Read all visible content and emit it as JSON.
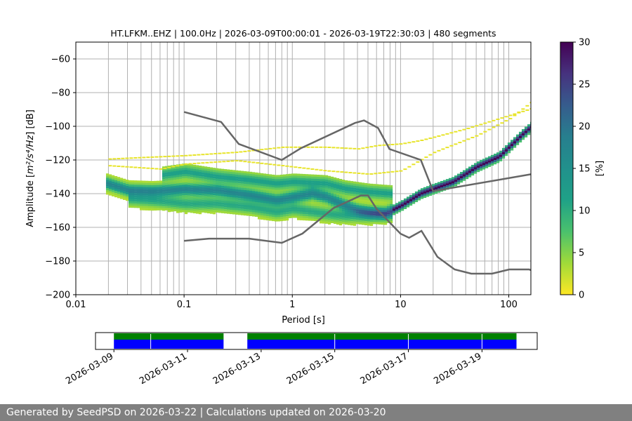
{
  "chart_data": [
    {
      "type": "heatmap",
      "subtype": "probabilistic-power-spectral-density",
      "title": "HT.LFKM..EHZ | 100.0Hz | 2026-03-09T00:00:01 - 2026-03-19T22:30:03 | 480 segments",
      "xlabel": "Period [s]",
      "ylabel_main": "Amplitude [",
      "ylabel_unit": "m²/s⁴/Hz",
      "ylabel_end": "] [dB]",
      "xscale": "log",
      "xlim": [
        0.01,
        160
      ],
      "ylim": [
        -200,
        -50
      ],
      "xticks": [
        {
          "value": 0.01,
          "label": "0.01"
        },
        {
          "value": 0.1,
          "label": "0.1"
        },
        {
          "value": 1,
          "label": "1"
        },
        {
          "value": 10,
          "label": "10"
        },
        {
          "value": 100,
          "label": "100"
        }
      ],
      "yticks": [
        {
          "value": -60,
          "label": "−60"
        },
        {
          "value": -80,
          "label": "−80"
        },
        {
          "value": -100,
          "label": "−100"
        },
        {
          "value": -120,
          "label": "−120"
        },
        {
          "value": -140,
          "label": "−140"
        },
        {
          "value": -160,
          "label": "−160"
        },
        {
          "value": -180,
          "label": "−180"
        },
        {
          "value": -200,
          "label": "−200"
        }
      ],
      "grid_periods": [
        0.02,
        0.03,
        0.04,
        0.05,
        0.06,
        0.07,
        0.08,
        0.09,
        0.1,
        0.2,
        0.3,
        0.4,
        0.5,
        0.6,
        0.7,
        0.8,
        0.9,
        1,
        2,
        3,
        4,
        5,
        6,
        7,
        8,
        9,
        10,
        20,
        30,
        40,
        50,
        60,
        70,
        80,
        90,
        100
      ],
      "grid": true,
      "noise_models": [
        {
          "name": "NHNM",
          "color": "#666666",
          "points": [
            [
              0.1,
              -91.5
            ],
            [
              0.22,
              -97.4
            ],
            [
              0.32,
              -110.5
            ],
            [
              0.8,
              -120
            ],
            [
              1.2,
              -113
            ],
            [
              3.8,
              -98
            ],
            [
              4.6,
              -96.5
            ],
            [
              6.2,
              -101
            ],
            [
              7.9,
              -113.5
            ],
            [
              15.4,
              -120
            ],
            [
              20,
              -138.5
            ],
            [
              160,
              -128.5
            ]
          ]
        },
        {
          "name": "NLNM",
          "color": "#666666",
          "points": [
            [
              0.1,
              -168
            ],
            [
              0.17,
              -166.7
            ],
            [
              0.4,
              -166.7
            ],
            [
              0.8,
              -169.2
            ],
            [
              1.24,
              -163.7
            ],
            [
              2.4,
              -148.6
            ],
            [
              4.3,
              -141.1
            ],
            [
              5.0,
              -141.1
            ],
            [
              6.0,
              -149.0
            ],
            [
              10,
              -163.8
            ],
            [
              12,
              -166.2
            ],
            [
              15.6,
              -162.1
            ],
            [
              21.9,
              -177.5
            ],
            [
              31.6,
              -185
            ],
            [
              45,
              -187.5
            ],
            [
              70,
              -187.5
            ],
            [
              101,
              -185
            ],
            [
              154,
              -185
            ],
            [
              160,
              -185.4
            ]
          ]
        }
      ],
      "ridges": [
        {
          "name": "mode",
          "points": [
            [
              0.019,
              -134
            ],
            [
              0.03,
              -138
            ],
            [
              0.05,
              -138.5
            ],
            [
              0.1,
              -137.5
            ],
            [
              0.2,
              -138
            ],
            [
              0.4,
              -141
            ],
            [
              0.7,
              -144
            ],
            [
              1.0,
              -142
            ],
            [
              1.5,
              -140
            ],
            [
              2.0,
              -142
            ],
            [
              3.0,
              -147
            ],
            [
              4.0,
              -150
            ],
            [
              5.0,
              -151
            ],
            [
              7.0,
              -152
            ],
            [
              10,
              -147
            ],
            [
              15,
              -140
            ],
            [
              20,
              -137
            ],
            [
              30,
              -133
            ],
            [
              50,
              -124
            ],
            [
              80,
              -118
            ],
            [
              100,
              -112
            ],
            [
              130,
              -105
            ],
            [
              160,
              -100
            ]
          ]
        },
        {
          "name": "upper",
          "points": [
            [
              0.06,
              -129
            ],
            [
              0.1,
              -127
            ],
            [
              0.2,
              -130
            ],
            [
              0.4,
              -132
            ],
            [
              0.7,
              -134
            ],
            [
              1.0,
              -133
            ],
            [
              2,
              -134
            ],
            [
              3,
              -137
            ],
            [
              5,
              -139
            ],
            [
              8,
              -140
            ]
          ]
        },
        {
          "name": "lower",
          "points": [
            [
              0.03,
              -143
            ],
            [
              0.05,
              -144
            ],
            [
              0.1,
              -146
            ],
            [
              0.2,
              -146
            ],
            [
              0.4,
              -148
            ],
            [
              0.7,
              -151
            ],
            [
              1.0,
              -149
            ],
            [
              2,
              -152
            ],
            [
              3,
              -153
            ],
            [
              5,
              -153
            ],
            [
              8,
              -152
            ]
          ]
        }
      ],
      "spurs": [
        {
          "name": "upper-spur-1",
          "points": [
            [
              0.02,
              -119
            ],
            [
              0.1,
              -117
            ],
            [
              0.3,
              -115
            ],
            [
              0.8,
              -112
            ],
            [
              2,
              -112
            ],
            [
              4,
              -113
            ],
            [
              6,
              -111
            ],
            [
              10,
              -110
            ],
            [
              15,
              -108
            ],
            [
              20,
              -106
            ],
            [
              40,
              -101
            ],
            [
              80,
              -95
            ],
            [
              160,
              -89
            ]
          ]
        },
        {
          "name": "upper-spur-2",
          "points": [
            [
              0.02,
              -123
            ],
            [
              0.06,
              -125
            ],
            [
              0.1,
              -122
            ],
            [
              0.3,
              -120
            ],
            [
              0.8,
              -123
            ],
            [
              2,
              -126
            ],
            [
              5,
              -128
            ],
            [
              10,
              -126
            ],
            [
              20,
              -115
            ],
            [
              50,
              -105
            ],
            [
              100,
              -95
            ],
            [
              160,
              -85
            ]
          ]
        }
      ],
      "colorbar": {
        "label": "[%]",
        "min": 0,
        "max": 30,
        "cmap": "viridis_r",
        "ticks": [
          {
            "value": 0,
            "label": "0"
          },
          {
            "value": 5,
            "label": "5"
          },
          {
            "value": 10,
            "label": "10"
          },
          {
            "value": 15,
            "label": "15"
          },
          {
            "value": 20,
            "label": "20"
          },
          {
            "value": 25,
            "label": "25"
          },
          {
            "value": 30,
            "label": "30"
          }
        ]
      }
    },
    {
      "type": "timeline",
      "title": "",
      "xlim": [
        "2026-03-08T12:00:00",
        "2026-03-20T12:00:00"
      ],
      "xticks": [
        {
          "value": "2026-03-09",
          "label": "2026-03-09"
        },
        {
          "value": "2026-03-11",
          "label": "2026-03-11"
        },
        {
          "value": "2026-03-13",
          "label": "2026-03-13"
        },
        {
          "value": "2026-03-15",
          "label": "2026-03-15"
        },
        {
          "value": "2026-03-17",
          "label": "2026-03-17"
        },
        {
          "value": "2026-03-19",
          "label": "2026-03-19"
        }
      ],
      "data_available": [
        [
          "2026-03-09T00:00:00",
          "2026-03-11T23:30:00"
        ],
        [
          "2026-03-12T15:00:00",
          "2026-03-19T22:30:00"
        ]
      ],
      "psd_segments": [
        [
          "2026-03-09T00:00:00",
          "2026-03-11T23:30:00"
        ],
        [
          "2026-03-12T15:00:00",
          "2026-03-19T22:30:00"
        ]
      ],
      "segment_breaks": [
        "2026-03-10T00:00:00",
        "2026-03-15T00:00:00",
        "2026-03-17T00:00:00",
        "2026-03-19T00:00:00"
      ],
      "colors": {
        "available": "#008000",
        "psd": "#0000ff"
      }
    }
  ],
  "footer": {
    "text": "Generated by SeedPSD on 2026-03-22 | Calculations updated on 2026-03-20"
  }
}
